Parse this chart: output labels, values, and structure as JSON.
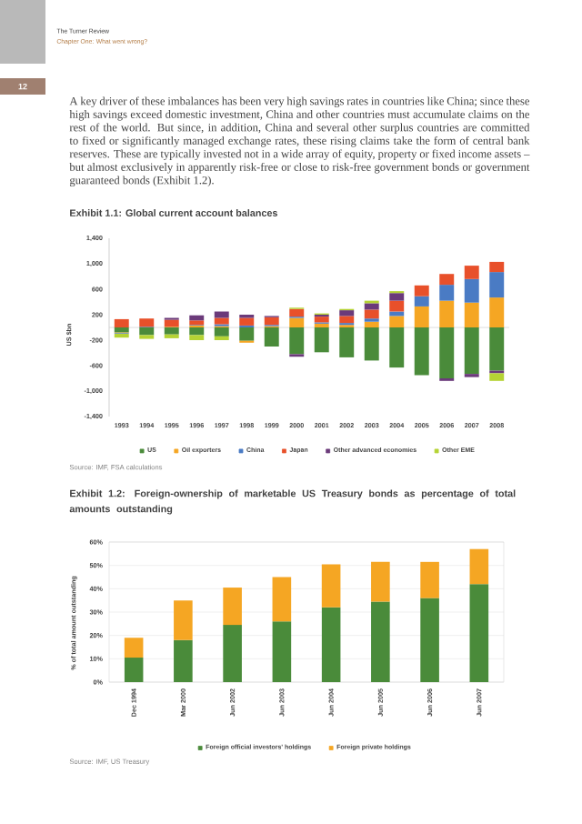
{
  "chart_data": [
    {
      "type": "bar",
      "stacked": true,
      "title": "Exhibit 1.1: Global current account balances",
      "ylabel": "US $bn",
      "categories": [
        "1993",
        "1994",
        "1995",
        "1996",
        "1997",
        "1998",
        "1999",
        "2000",
        "2001",
        "2002",
        "2003",
        "2004",
        "2005",
        "2006",
        "2007",
        "2008"
      ],
      "series": [
        {
          "name": "US",
          "color": "#4a8b3a",
          "values": [
            -80,
            -120,
            -110,
            -120,
            -140,
            -210,
            -300,
            -420,
            -390,
            -470,
            -520,
            -630,
            -750,
            -800,
            -730,
            -680
          ]
        },
        {
          "name": "Oil exporters",
          "color": "#f5a623",
          "values": [
            -10,
            0,
            10,
            30,
            20,
            -30,
            20,
            150,
            60,
            40,
            90,
            180,
            330,
            420,
            390,
            470
          ]
        },
        {
          "name": "China",
          "color": "#4a7bc4",
          "values": [
            -10,
            10,
            0,
            10,
            30,
            30,
            20,
            20,
            20,
            30,
            50,
            70,
            160,
            250,
            370,
            400
          ]
        },
        {
          "name": "Japan",
          "color": "#e8502a",
          "values": [
            130,
            130,
            110,
            70,
            100,
            120,
            120,
            120,
            90,
            110,
            140,
            170,
            170,
            170,
            210,
            160
          ]
        },
        {
          "name": "Other advanced economies",
          "color": "#6b3a7a",
          "values": [
            0,
            null,
            30,
            80,
            100,
            50,
            20,
            -40,
            30,
            90,
            100,
            120,
            0,
            -40,
            -50,
            -40
          ]
        },
        {
          "name": "Other EME",
          "color": "#b5d334",
          "values": [
            -60,
            -60,
            -60,
            -80,
            -60,
            0,
            0,
            20,
            20,
            20,
            40,
            30,
            0,
            0,
            0,
            -120
          ]
        }
      ],
      "ylim": [
        -1400,
        1400
      ],
      "yticks": [
        {
          "value": -1400,
          "label": "-1,400"
        },
        {
          "value": -1000,
          "label": "-1,000"
        },
        -600,
        -200,
        200,
        600,
        {
          "value": 1000,
          "label": "1,000"
        },
        {
          "value": 1400,
          "label": "1,400"
        }
      ],
      "legend": "bottom",
      "annotations": [
        "The Turner Review",
        "Chapter One: What went wrong?",
        "12",
        "A key driver of these imbalances has been very high savings rates in countries like China; since these high savings exceed domestic investment, China and other countries must accumulate claims on the rest of the world. But since, in addition, China and several other surplus countries are committed to fixed or significantly managed exchange rates, these rising claims take the form of central bank reserves. These are typically invested not in a wide array of equity, property or fixed income assets – but almost exclusively in apparently risk-free or close to risk-free government bonds or government guaranteed bonds (Exhibit 1.2).",
        "Source: IMF, FSA calculations"
      ]
    },
    {
      "type": "bar",
      "stacked": true,
      "title": "Exhibit 1.2: Foreign-ownership of marketable US Treasury bonds as percentage of total amounts outstanding",
      "ylabel": "% of total amount outstanding",
      "categories": [
        "Dec 1994",
        "Mar 2000",
        "Jun 2002",
        "Jun 2003",
        "Jun 2004",
        "Jun 2005",
        "Jun 2006",
        "Jun 2007"
      ],
      "series": [
        {
          "name": "Foreign official investors' holdings",
          "color": "#4a8b3a",
          "values": [
            10.5,
            18,
            24.5,
            26,
            32,
            34.5,
            36,
            42
          ]
        },
        {
          "name": "Foreign private holdings",
          "color": "#f5a623",
          "values": [
            8.5,
            17,
            16,
            19,
            18.5,
            17,
            15.5,
            15
          ]
        }
      ],
      "ylim": [
        0,
        60
      ],
      "yticks": [
        {
          "value": 0,
          "label": "0%"
        },
        {
          "value": 10,
          "label": "10%"
        },
        {
          "value": 20,
          "label": "20%"
        },
        {
          "value": 30,
          "label": "30%"
        },
        {
          "value": 40,
          "label": "40%"
        },
        {
          "value": 50,
          "label": "50%"
        },
        {
          "value": 60,
          "label": "60%"
        }
      ],
      "grid": "y",
      "legend": "bottom",
      "annotations": [
        "Source: IMF, US Treasury"
      ]
    }
  ]
}
